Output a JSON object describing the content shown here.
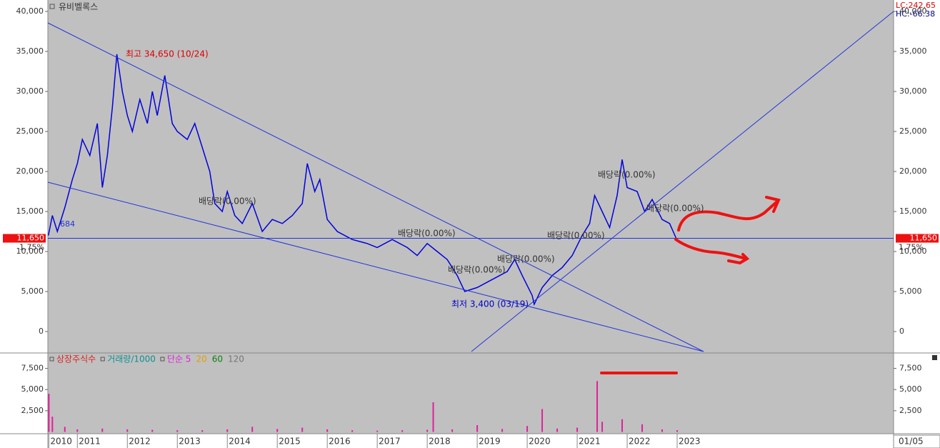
{
  "chart_data": [
    {
      "type": "line",
      "title": "유비벨록스",
      "color": "#0000dd",
      "x": [
        2010.42,
        2010.5,
        2010.6,
        2010.75,
        2010.9,
        2011.0,
        2011.1,
        2011.25,
        2011.4,
        2011.5,
        2011.6,
        2011.7,
        2011.79,
        2011.9,
        2012.0,
        2012.1,
        2012.25,
        2012.4,
        2012.5,
        2012.6,
        2012.75,
        2012.9,
        2013.0,
        2013.2,
        2013.35,
        2013.5,
        2013.65,
        2013.75,
        2013.9,
        2014.0,
        2014.15,
        2014.3,
        2014.5,
        2014.7,
        2014.9,
        2015.1,
        2015.3,
        2015.5,
        2015.6,
        2015.75,
        2015.85,
        2016.0,
        2016.2,
        2016.5,
        2016.8,
        2017.0,
        2017.3,
        2017.6,
        2017.8,
        2018.0,
        2018.2,
        2018.4,
        2018.6,
        2018.75,
        2019.0,
        2019.3,
        2019.6,
        2019.75,
        2019.9,
        2020.1,
        2020.14,
        2020.3,
        2020.5,
        2020.7,
        2020.9,
        2021.1,
        2021.25,
        2021.35,
        2021.5,
        2021.65,
        2021.8,
        2021.9,
        2022.0,
        2022.2,
        2022.35,
        2022.5,
        2022.7,
        2022.85,
        2022.98
      ],
      "values": [
        12000,
        14500,
        12500,
        15500,
        19000,
        21000,
        24000,
        22000,
        26000,
        18000,
        22000,
        28000,
        34650,
        30000,
        27000,
        25000,
        29000,
        26000,
        30000,
        27000,
        32000,
        26000,
        25000,
        24000,
        26000,
        23000,
        20000,
        16000,
        15000,
        17500,
        14500,
        13500,
        16000,
        12500,
        14000,
        13500,
        14500,
        16000,
        21000,
        17500,
        19000,
        14000,
        12500,
        11500,
        11000,
        10500,
        11500,
        10500,
        9500,
        11000,
        10000,
        9000,
        7000,
        5000,
        5500,
        6500,
        7500,
        9000,
        7000,
        4500,
        3400,
        5500,
        7000,
        8000,
        9500,
        12000,
        13500,
        17000,
        15000,
        13000,
        17000,
        21500,
        18000,
        17500,
        15000,
        16500,
        14000,
        13500,
        11650
      ],
      "xlim": [
        2010.41,
        2027.33
      ],
      "xticks": [
        {
          "value": 2010.43,
          "label": "2010"
        },
        2011,
        2012,
        2013,
        2014,
        2015,
        2016,
        2017,
        2018,
        2019,
        2020,
        2021,
        2022,
        2023
      ],
      "date_label": "01/05",
      "ylim": [
        -2500,
        41250
      ],
      "yticks": [
        0,
        {
          "value": 5000,
          "label": "5,000"
        },
        {
          "value": 10000,
          "label": "10,000"
        },
        {
          "value": 15000,
          "label": "15,000"
        },
        {
          "value": 20000,
          "label": "20,000"
        },
        {
          "value": 25000,
          "label": "25,000"
        },
        {
          "value": 30000,
          "label": "30,000"
        },
        {
          "value": 35000,
          "label": "35,000"
        },
        {
          "value": 40000,
          "label": "40,000"
        }
      ],
      "current_price": {
        "value": 11650,
        "label": "11,650"
      },
      "change_label": "1.75%",
      "partial_label": "684",
      "indicator_labels": [
        "LC:242.65",
        "HC:-66.38"
      ],
      "high": {
        "value": 34650,
        "label": "최고 34,650 (10/24)"
      },
      "low": {
        "value": 3400,
        "label": "최저 3,400 (03/19)"
      },
      "dividend_labels": [
        "배당락(0.00%)",
        "배당락(0.00%)",
        "배당락(0.00%)",
        "배당락(0.00%)",
        "배당락(0.00%)",
        "배당락(0.00%)",
        "배당락(0.00%)"
      ]
    },
    {
      "type": "bar",
      "color": "#e0209a",
      "legend": [
        {
          "name": "상장주식수",
          "color": "#dd2222"
        },
        {
          "name": "거래량/1000",
          "color": "#109090"
        },
        {
          "name": "단순 5",
          "color": "#dd22dd"
        },
        {
          "name": "20",
          "color": "#e0a000"
        },
        {
          "name": "60",
          "color": "#108010"
        },
        {
          "name": "120",
          "color": "#777777"
        }
      ],
      "x": [
        2010.43,
        2010.5,
        2010.75,
        2011.0,
        2011.5,
        2012.0,
        2012.5,
        2013.0,
        2013.5,
        2014.0,
        2014.5,
        2015.0,
        2015.5,
        2016.0,
        2016.5,
        2017.0,
        2017.5,
        2018.0,
        2018.12,
        2018.5,
        2019.0,
        2019.5,
        2020.0,
        2020.3,
        2020.6,
        2021.0,
        2021.4,
        2021.5,
        2021.9,
        2022.3,
        2022.7,
        2023.0
      ],
      "values": [
        4500,
        1800,
        600,
        300,
        400,
        300,
        250,
        200,
        200,
        300,
        600,
        350,
        500,
        300,
        200,
        150,
        200,
        250,
        3500,
        300,
        800,
        350,
        700,
        2700,
        400,
        500,
        6000,
        1200,
        1500,
        900,
        300,
        200
      ],
      "ylim": [
        -212,
        9150
      ],
      "yticks": [
        {
          "value": 2500,
          "label": "2,500"
        },
        {
          "value": 5000,
          "label": "5,000"
        },
        {
          "value": 7500,
          "label": "7,500"
        }
      ]
    }
  ]
}
